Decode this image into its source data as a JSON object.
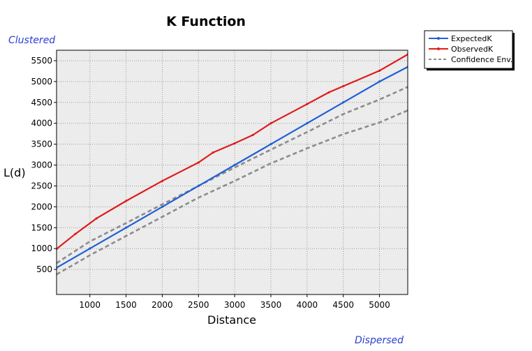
{
  "chart_data": {
    "type": "line",
    "title": "K Function",
    "xlabel": "Distance",
    "ylabel": "L(d)",
    "annotations": {
      "top_left": "Clustered",
      "bottom_right": "Dispersed"
    },
    "xlim": [
      540,
      5390
    ],
    "ylim": [
      -100,
      5750
    ],
    "x_ticks": [
      1000,
      1500,
      2000,
      2500,
      3000,
      3500,
      4000,
      4500,
      5000
    ],
    "y_ticks": [
      500,
      1000,
      1500,
      2000,
      2500,
      3000,
      3500,
      4000,
      4500,
      5000,
      5500
    ],
    "grid": true,
    "legend_position": "top-right, outside plot",
    "colors": {
      "expected": "#1f5fd6",
      "observed": "#e01b1b",
      "envelope": "#8c8c8c",
      "plot_background": "#ececec",
      "annotation": "#2a3fd0"
    },
    "series": [
      {
        "name": "ExpectedK",
        "color": "#1f5fd6",
        "points": [
          [
            540,
            540
          ],
          [
            1000,
            1000
          ],
          [
            1500,
            1500
          ],
          [
            2000,
            2000
          ],
          [
            2500,
            2500
          ],
          [
            3000,
            3000
          ],
          [
            3500,
            3500
          ],
          [
            4000,
            4000
          ],
          [
            4500,
            4500
          ],
          [
            5000,
            5000
          ],
          [
            5390,
            5350
          ]
        ]
      },
      {
        "name": "ObservedK",
        "color": "#e01b1b",
        "points": [
          [
            540,
            990
          ],
          [
            800,
            1350
          ],
          [
            1090,
            1720
          ],
          [
            1500,
            2140
          ],
          [
            2000,
            2620
          ],
          [
            2500,
            3060
          ],
          [
            2700,
            3300
          ],
          [
            3000,
            3520
          ],
          [
            3250,
            3720
          ],
          [
            3500,
            4000
          ],
          [
            4000,
            4460
          ],
          [
            4300,
            4740
          ],
          [
            4500,
            4890
          ],
          [
            5000,
            5260
          ],
          [
            5390,
            5650
          ]
        ]
      },
      {
        "name": "Confidence Env.",
        "color": "#8c8c8c",
        "dashed": true,
        "points": [
          [
            540,
            650
          ],
          [
            1000,
            1170
          ],
          [
            1500,
            1610
          ],
          [
            2000,
            2060
          ],
          [
            2500,
            2500
          ],
          [
            3000,
            2940
          ],
          [
            3500,
            3370
          ],
          [
            4000,
            3790
          ],
          [
            4500,
            4220
          ],
          [
            5000,
            4570
          ],
          [
            5390,
            4870
          ]
        ]
      },
      {
        "name": "",
        "color": "#8c8c8c",
        "dashed": true,
        "points": [
          [
            540,
            380
          ],
          [
            1000,
            840
          ],
          [
            1500,
            1300
          ],
          [
            2000,
            1760
          ],
          [
            2500,
            2220
          ],
          [
            3000,
            2620
          ],
          [
            3500,
            3040
          ],
          [
            4000,
            3400
          ],
          [
            4500,
            3740
          ],
          [
            5000,
            4020
          ],
          [
            5390,
            4310
          ]
        ]
      }
    ]
  }
}
